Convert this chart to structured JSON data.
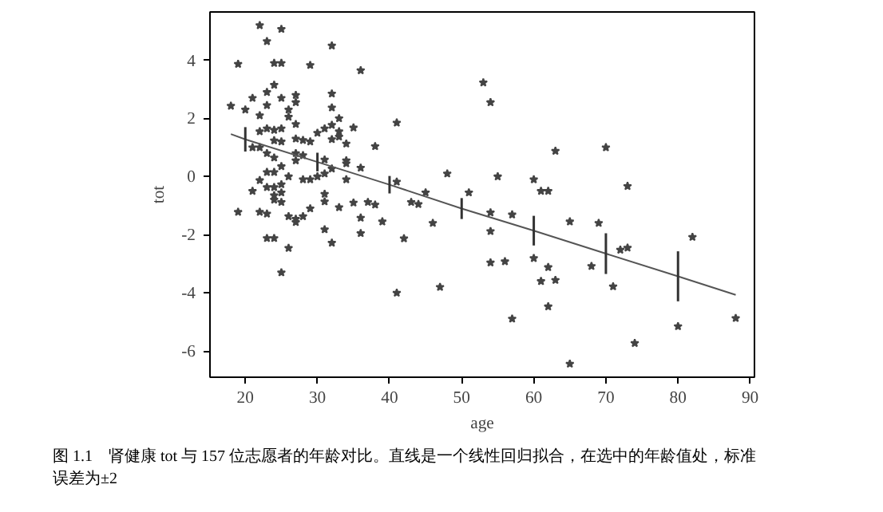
{
  "chart_data": {
    "type": "scatter",
    "xlabel": "age",
    "ylabel": "tot",
    "xlim": [
      15.1,
      90.6
    ],
    "ylim": [
      -6.9,
      5.66
    ],
    "xticks": [
      20,
      30,
      40,
      50,
      60,
      70,
      80,
      90
    ],
    "yticks": [
      -6,
      -4,
      -2,
      0,
      2,
      4
    ],
    "annotations": [
      "图 1.1　肾健康 tot 与 157 位志愿者的年龄对比。直线是一个线性回归拟合，在选中的年龄值处，标准误差为±2"
    ],
    "series": [
      {
        "marker": "star",
        "color": "#444444",
        "x": [
          22,
          25,
          23,
          19,
          24,
          25,
          29,
          32,
          36,
          18,
          20,
          21,
          23,
          24,
          25,
          27,
          27,
          26,
          22,
          23,
          32,
          32,
          33,
          41,
          26,
          22,
          23,
          24,
          25,
          27,
          27,
          28,
          29,
          30,
          31,
          32,
          33,
          33,
          35,
          32,
          34,
          38,
          21,
          22,
          24,
          25,
          23,
          24,
          27,
          28,
          27,
          31,
          34,
          34,
          36,
          32,
          48,
          22,
          23,
          24,
          25,
          26,
          28,
          29,
          30,
          31,
          34,
          21,
          23,
          24,
          24,
          24,
          25,
          25,
          25,
          31,
          31,
          33,
          35,
          37,
          38,
          41,
          43,
          44,
          45,
          51,
          19,
          22,
          23,
          26,
          27,
          27,
          28,
          29,
          36,
          36,
          39,
          46,
          31,
          23,
          24,
          42,
          32,
          26,
          25,
          41,
          47,
          53,
          54,
          63,
          70,
          55,
          60,
          61,
          62,
          73,
          54,
          57,
          54,
          65,
          69,
          82,
          72,
          73,
          54,
          56,
          60,
          62,
          68,
          61,
          63,
          71,
          62,
          57,
          80,
          88,
          74,
          65
        ],
        "values": [
          5.2,
          5.07,
          4.65,
          3.87,
          3.9,
          3.9,
          3.83,
          4.5,
          3.65,
          2.43,
          2.3,
          2.7,
          2.9,
          3.15,
          2.7,
          2.8,
          2.55,
          2.3,
          2.1,
          2.45,
          2.85,
          2.37,
          2.0,
          1.85,
          2.05,
          1.55,
          1.65,
          1.6,
          1.65,
          1.8,
          1.3,
          1.25,
          1.2,
          1.5,
          1.65,
          1.77,
          1.55,
          1.37,
          1.68,
          1.28,
          1.13,
          1.04,
          1.0,
          1.0,
          1.24,
          1.2,
          0.8,
          0.65,
          0.8,
          0.73,
          0.55,
          0.58,
          0.55,
          0.45,
          0.3,
          0.27,
          0.1,
          -0.13,
          0.15,
          0.15,
          0.35,
          0,
          -0.1,
          -0.1,
          0,
          0.1,
          -0.1,
          -0.5,
          -0.37,
          -0.37,
          -0.65,
          -0.8,
          -0.27,
          -0.55,
          -0.88,
          -0.6,
          -0.86,
          -1.06,
          -0.9,
          -0.88,
          -0.97,
          -0.18,
          -0.88,
          -0.95,
          -0.55,
          -0.55,
          -1.22,
          -1.22,
          -1.28,
          -1.37,
          -1.46,
          -1.57,
          -1.37,
          -1.1,
          -1.42,
          -1.95,
          -1.55,
          -1.6,
          -1.82,
          -2.12,
          -2.12,
          -2.13,
          -2.28,
          -2.46,
          -3.3,
          -4.0,
          -3.8,
          3.23,
          2.55,
          0.88,
          1.0,
          0,
          -0.1,
          -0.5,
          -0.5,
          -0.33,
          -1.24,
          -1.31,
          -1.88,
          -1.55,
          -1.6,
          -2.08,
          -2.52,
          -2.45,
          -2.96,
          -2.92,
          -2.81,
          -3.12,
          -3.08,
          -3.6,
          -3.56,
          -3.78,
          -4.47,
          -4.89,
          -5.15,
          -4.87,
          -5.73,
          -6.44
        ]
      },
      {
        "type": "line",
        "color": "#555555",
        "x": [
          18,
          20,
          30,
          40,
          50,
          60,
          70,
          80,
          88
        ],
        "values": [
          1.46,
          1.28,
          0.5,
          -0.28,
          -1.1,
          -1.86,
          -2.65,
          -3.43,
          -4.07
        ],
        "errors": [
          null,
          0.42,
          0.32,
          0.3,
          0.36,
          0.51,
          0.7,
          0.86,
          null
        ]
      }
    ]
  }
}
